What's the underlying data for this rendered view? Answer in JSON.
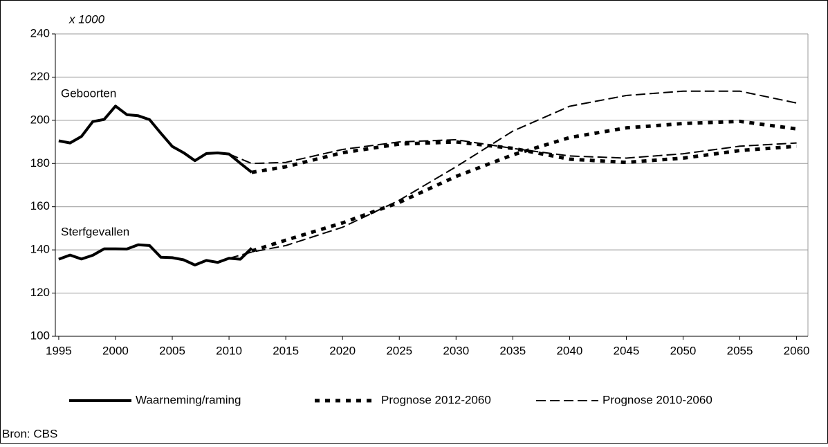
{
  "chart_data": {
    "type": "line",
    "unit_note": "x 1000",
    "annotations": [
      "Geboorten",
      "Sterfgevallen"
    ],
    "source": "Bron: CBS",
    "xlim": [
      1994.7,
      2061
    ],
    "xticks": [
      1995,
      2000,
      2005,
      2010,
      2015,
      2020,
      2025,
      2030,
      2035,
      2040,
      2045,
      2050,
      2055,
      2060
    ],
    "ylim": [
      100,
      240
    ],
    "yticks": [
      100,
      120,
      140,
      160,
      180,
      200,
      220,
      240
    ],
    "grid": true,
    "legend": "bottom",
    "series": [
      {
        "name": "Waarneming/raming",
        "color": "#000000",
        "style": "solid",
        "x": [
          1995,
          1996,
          1997,
          1998,
          1999,
          2000,
          2001,
          2002,
          2003,
          2004,
          2005,
          2006,
          2007,
          2008,
          2009,
          2010,
          2011,
          2012
        ],
        "geboorten": [
          190.5,
          189.5,
          192.5,
          199.4,
          200.4,
          206.6,
          202.6,
          202.1,
          200.3,
          194.0,
          187.9,
          185.0,
          181.3,
          184.6,
          184.9,
          184.4,
          180.1,
          175.9
        ],
        "sterfgevallen": [
          135.7,
          137.6,
          135.8,
          137.5,
          140.5,
          140.5,
          140.4,
          142.4,
          142.0,
          136.6,
          136.4,
          135.4,
          133.0,
          135.1,
          134.2,
          136.1,
          135.7,
          140.8
        ]
      },
      {
        "name": "Prognose 2012-2060",
        "color": "#000000",
        "style": "dotted",
        "x": [
          2012,
          2015,
          2020,
          2025,
          2030,
          2035,
          2040,
          2045,
          2050,
          2055,
          2060
        ],
        "geboorten": [
          175.9,
          178.5,
          185,
          189,
          190,
          187,
          182,
          180.5,
          182.5,
          186,
          188
        ],
        "sterfgevallen": [
          139.5,
          144.5,
          152.5,
          162,
          174,
          184,
          192,
          196.5,
          198.5,
          199.5,
          196
        ]
      },
      {
        "name": "Prognose 2010-2060",
        "color": "#000000",
        "style": "dashed",
        "x": [
          2010,
          2012,
          2015,
          2020,
          2025,
          2030,
          2035,
          2040,
          2045,
          2050,
          2055,
          2060
        ],
        "geboorten": [
          184.4,
          180,
          180.5,
          186.5,
          190,
          191,
          187,
          183.5,
          182.5,
          184.5,
          188,
          189.5
        ],
        "sterfgevallen": [
          136.1,
          139,
          142,
          150.5,
          163,
          178.5,
          195,
          206.5,
          211.5,
          213.5,
          213.5,
          208
        ]
      }
    ]
  }
}
